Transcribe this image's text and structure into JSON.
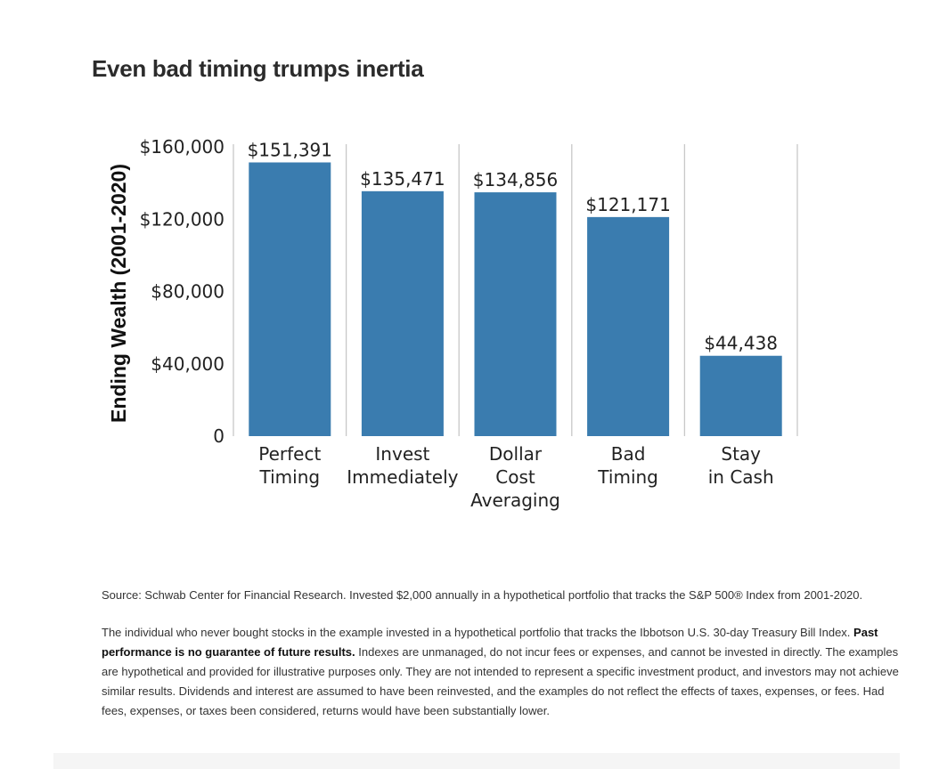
{
  "title": "Even bad timing trumps inertia",
  "chart_data": {
    "type": "bar",
    "categories": [
      [
        "Perfect",
        "Timing"
      ],
      [
        "Invest",
        "Immediately"
      ],
      [
        "Dollar",
        "Cost",
        "Averaging"
      ],
      [
        "Bad",
        "Timing"
      ],
      [
        "Stay",
        "in Cash"
      ]
    ],
    "values": [
      151391,
      135471,
      134856,
      121171,
      44438
    ],
    "data_labels": [
      "$151,391",
      "$135,471",
      "$134,856",
      "$121,171",
      "$44,438"
    ],
    "yticks": [
      0,
      40000,
      80000,
      120000,
      160000
    ],
    "ytick_labels": [
      "0",
      "$40,000",
      "$80,000",
      "$120,000",
      "$160,000"
    ],
    "ylim": [
      0,
      160000
    ],
    "ylabel": "Ending Wealth (2001-2020)",
    "xlabel": "",
    "bar_color": "#3a7caf",
    "gridlines": "vertical separators between categories",
    "legend": "none"
  },
  "notes": {
    "source": "Source: Schwab Center for Financial Research. Invested $2,000 annually in a hypothetical portfolio that tracks the S&P 500® Index from 2001-2020.",
    "p2_start": "The individual who never bought stocks in the example invested in a hypothetical portfolio that tracks the Ibbotson U.S. 30-day Treasury Bill Index.",
    "p2_bold": "Past performance is no guarantee of future results.",
    "p2_end": "Indexes are unmanaged, do not incur fees or expenses, and cannot be invested in directly. The examples are hypothetical and provided for illustrative purposes only. They are not intended to represent a specific investment product, and investors may not achieve similar results. Dividends and interest are assumed to have been reinvested, and the examples do not reflect the effects of taxes, expenses, or fees. Had fees, expenses, or taxes been considered, returns would have been substantially lower."
  }
}
